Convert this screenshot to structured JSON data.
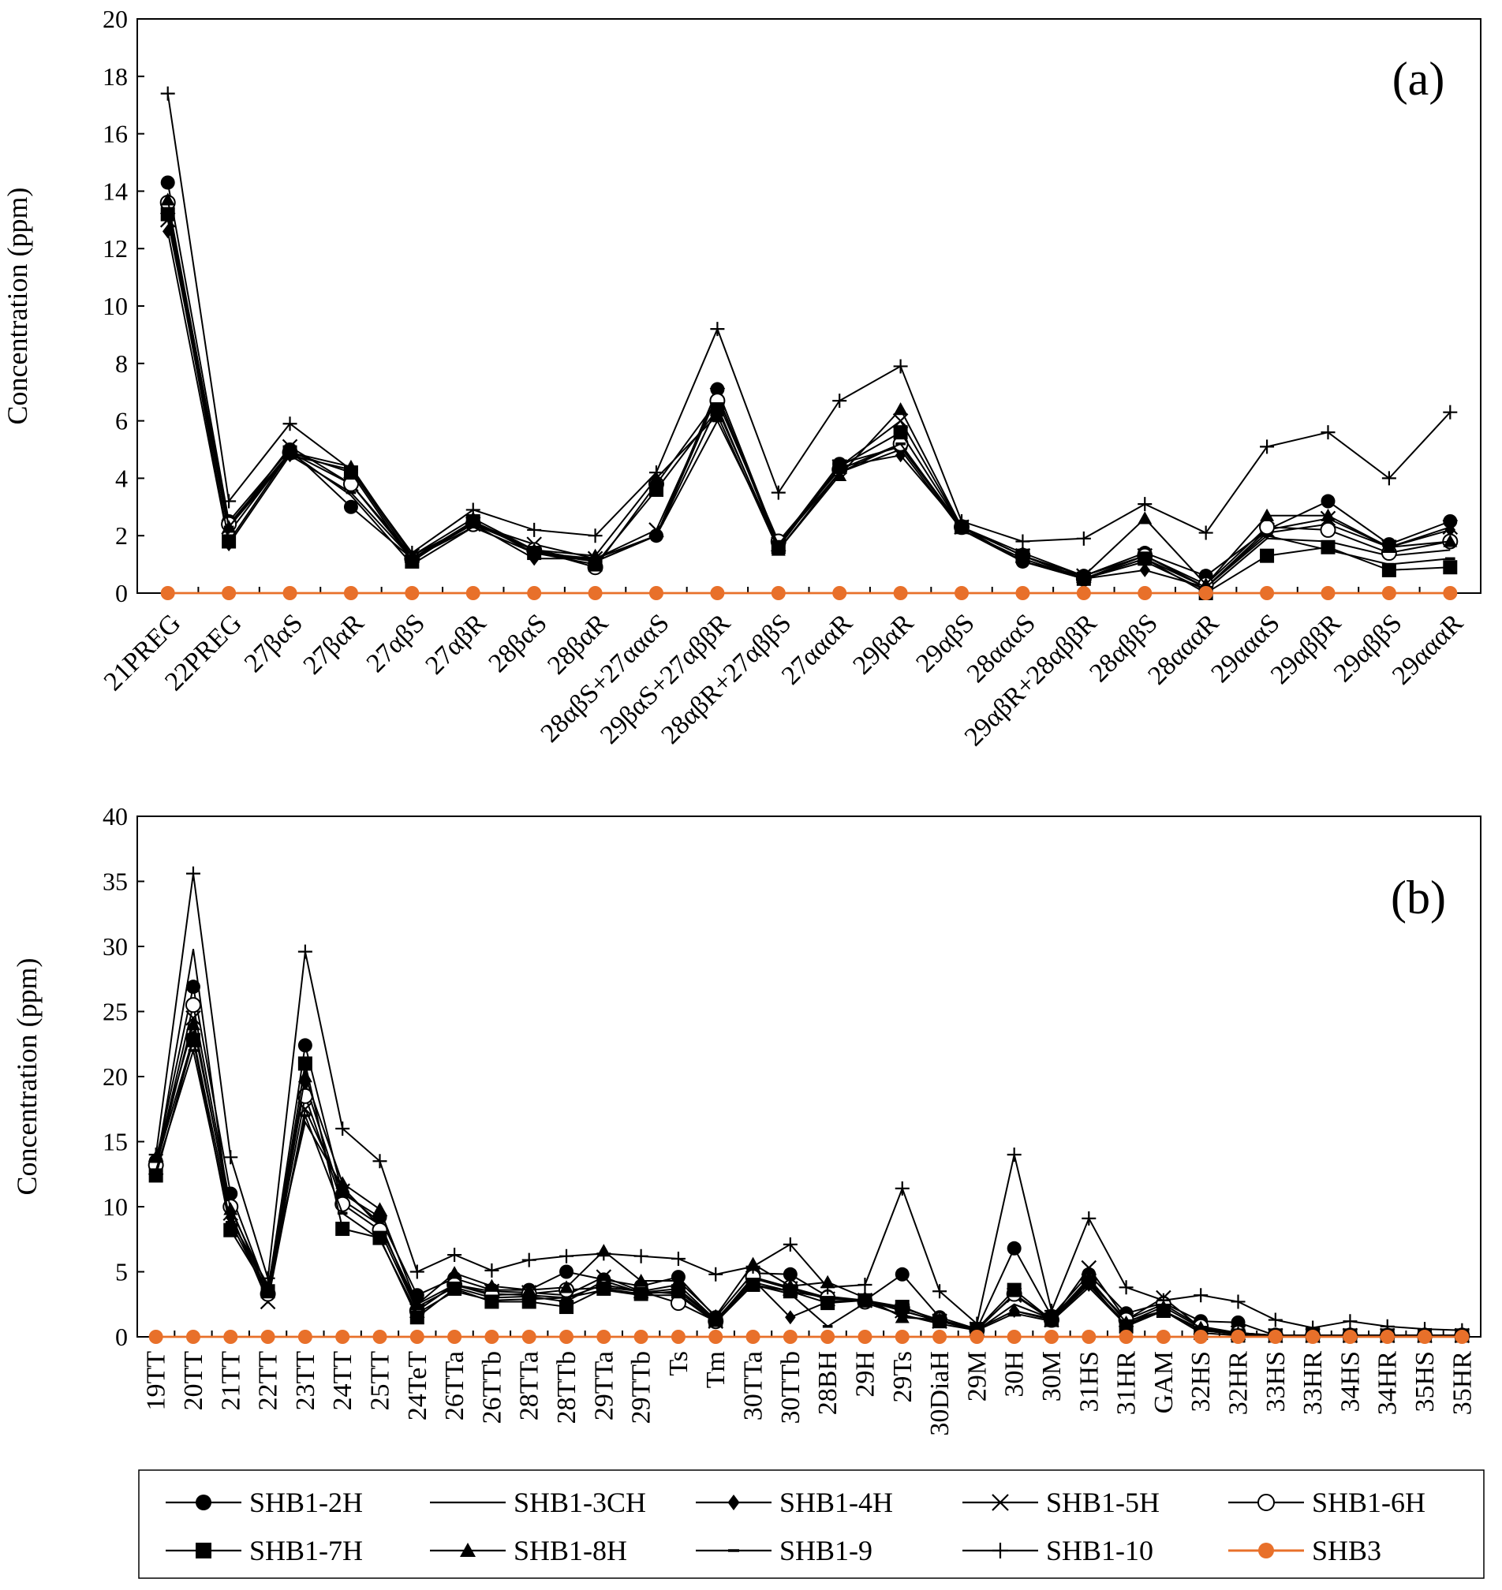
{
  "chart_data": [
    {
      "panel": "(a)",
      "type": "line",
      "ylabel": "Concentration (ppm)",
      "ylim": [
        0,
        20
      ],
      "yticks": [
        "0",
        "2",
        "4",
        "6",
        "8",
        "10",
        "12",
        "14",
        "16",
        "18",
        "20"
      ],
      "grid": false,
      "categories": [
        "21PREG",
        "22PREG",
        "27βαS",
        "27βαR",
        "27αβS",
        "27αβR",
        "28βαS",
        "28βαR",
        "28αβS+27αααS",
        "29βαS+27αββR",
        "28αβR+27αββS",
        "27αααR",
        "29βαR",
        "29αβS",
        "28αααS",
        "29αβR+28αββR",
        "28αββS",
        "28αααR",
        "29αααS",
        "29αββR",
        "29αββS",
        "29αααR"
      ],
      "series": [
        {
          "name": "SHB1-2H",
          "values": [
            14.3,
            2.5,
            5.0,
            3.0,
            1.2,
            2.5,
            1.5,
            1.1,
            2.0,
            7.1,
            1.7,
            4.5,
            5.1,
            2.3,
            1.1,
            0.6,
            1.4,
            0.6,
            2.2,
            3.2,
            1.7,
            2.5
          ]
        },
        {
          "name": "SHB1-3CH",
          "values": [
            13.4,
            2.1,
            4.9,
            3.4,
            1.0,
            2.3,
            1.4,
            1.1,
            2.0,
            6.5,
            1.5,
            4.2,
            5.0,
            2.2,
            1.1,
            0.5,
            1.1,
            0.1,
            1.9,
            1.8,
            1.3,
            1.5
          ]
        },
        {
          "name": "SHB1-4H",
          "values": [
            12.6,
            1.7,
            4.8,
            4.3,
            1.2,
            2.4,
            1.2,
            1.2,
            2.0,
            6.9,
            1.6,
            4.4,
            4.8,
            2.3,
            1.1,
            0.5,
            0.8,
            0.2,
            2.1,
            2.4,
            1.6,
            2.2
          ]
        },
        {
          "name": "SHB1-5H",
          "values": [
            13.0,
            2.3,
            5.1,
            3.8,
            1.3,
            2.4,
            1.7,
            1.2,
            2.2,
            6.9,
            1.7,
            4.4,
            6.0,
            2.3,
            1.3,
            0.6,
            1.3,
            0.2,
            2.2,
            2.6,
            1.6,
            2.3
          ]
        },
        {
          "name": "SHB1-6H",
          "values": [
            13.6,
            2.4,
            4.9,
            3.8,
            1.2,
            2.4,
            1.5,
            0.9,
            3.8,
            6.7,
            1.8,
            4.3,
            5.2,
            2.3,
            1.3,
            0.5,
            1.3,
            0.3,
            2.3,
            2.2,
            1.4,
            1.8
          ]
        },
        {
          "name": "SHB1-7H",
          "values": [
            13.2,
            1.8,
            4.9,
            4.2,
            1.1,
            2.5,
            1.4,
            1.0,
            3.6,
            6.4,
            1.6,
            4.4,
            5.6,
            2.3,
            1.3,
            0.5,
            1.2,
            0.0,
            1.3,
            1.6,
            0.8,
            0.9
          ]
        },
        {
          "name": "SHB1-8H",
          "values": [
            13.7,
            2.3,
            4.9,
            4.4,
            1.3,
            2.6,
            1.5,
            1.3,
            4.0,
            6.2,
            1.5,
            4.1,
            6.4,
            2.3,
            1.4,
            0.6,
            2.6,
            0.3,
            2.7,
            2.7,
            1.6,
            1.8
          ]
        },
        {
          "name": "SHB1-9",
          "values": [
            13.3,
            2.3,
            4.8,
            3.5,
            1.2,
            2.3,
            1.4,
            1.2,
            2.0,
            6.0,
            1.7,
            4.2,
            5.2,
            2.2,
            1.2,
            0.5,
            1.2,
            0.2,
            2.0,
            1.5,
            1.0,
            1.2
          ]
        },
        {
          "name": "SHB1-10",
          "values": [
            17.4,
            3.2,
            5.9,
            4.3,
            1.4,
            2.9,
            2.2,
            2.0,
            4.2,
            9.2,
            3.5,
            6.7,
            7.9,
            2.5,
            1.8,
            1.9,
            3.1,
            2.1,
            5.1,
            5.6,
            4.0,
            6.3
          ]
        },
        {
          "name": "SHB3",
          "values": [
            0,
            0,
            0,
            0,
            0,
            0,
            0,
            0,
            0,
            0,
            0,
            0,
            0,
            0,
            0,
            0,
            0,
            0,
            0,
            0,
            0,
            0
          ]
        }
      ]
    },
    {
      "panel": "(b)",
      "type": "line",
      "ylabel": "Concentration (ppm)",
      "ylim": [
        0,
        40
      ],
      "yticks": [
        "0",
        "5",
        "10",
        "15",
        "20",
        "25",
        "30",
        "35",
        "40"
      ],
      "grid": false,
      "categories": [
        "19TT",
        "20TT",
        "21TT",
        "22TT",
        "23TT",
        "24TT",
        "25TT",
        "24TeT",
        "26TTa",
        "26TTb",
        "28TTa",
        "28TTb",
        "29TTa",
        "29TTb",
        "Ts",
        "Tm",
        "30TTa",
        "30TTb",
        "28BH",
        "29H",
        "29Ts",
        "30DiaH",
        "29M",
        "30H",
        "30M",
        "31HS",
        "31HR",
        "GAM",
        "32HS",
        "32HR",
        "33HS",
        "33HR",
        "34HS",
        "34HR",
        "35HS",
        "35HR"
      ],
      "series": [
        {
          "name": "SHB1-2H",
          "values": [
            13.5,
            26.9,
            11.0,
            3.5,
            22.4,
            11.0,
            9.2,
            3.2,
            4.5,
            3.6,
            3.6,
            5.0,
            4.4,
            3.9,
            4.6,
            1.5,
            4.9,
            4.8,
            3.1,
            2.8,
            4.8,
            1.5,
            0.6,
            6.8,
            1.6,
            4.8,
            1.8,
            2.6,
            1.2,
            1.1,
            0.1,
            0.1,
            0.1,
            0.1,
            0.1,
            0.1
          ]
        },
        {
          "name": "SHB1-3CH",
          "values": [
            13.0,
            29.8,
            9.0,
            4.0,
            16.5,
            11.5,
            8.5,
            2.5,
            4.0,
            3.3,
            3.2,
            3.0,
            4.0,
            3.5,
            4.0,
            1.3,
            4.2,
            3.5,
            3.0,
            2.8,
            2.0,
            1.2,
            0.5,
            2.5,
            1.4,
            4.3,
            1.2,
            2.0,
            0.6,
            0.2,
            0.1,
            0.1,
            0.1,
            0.1,
            0.1,
            0.1
          ]
        },
        {
          "name": "SHB1-4H",
          "values": [
            13.2,
            23.0,
            9.2,
            3.4,
            19.5,
            10.5,
            8.6,
            2.3,
            3.8,
            3.0,
            3.1,
            2.7,
            4.3,
            3.4,
            3.7,
            1.3,
            4.4,
            1.5,
            2.7,
            2.8,
            1.6,
            1.2,
            0.6,
            2.0,
            1.3,
            4.0,
            1.0,
            2.0,
            0.5,
            0.2,
            0.1,
            0.1,
            0.1,
            0.1,
            0.1,
            0.1
          ]
        },
        {
          "name": "SHB1-5H",
          "values": [
            13.0,
            24.5,
            9.5,
            2.7,
            17.5,
            11.2,
            8.8,
            2.0,
            4.0,
            3.5,
            3.4,
            3.2,
            4.6,
            3.5,
            3.3,
            1.2,
            4.5,
            3.7,
            2.9,
            2.8,
            2.0,
            1.2,
            0.6,
            3.2,
            1.3,
            5.3,
            1.3,
            3.0,
            0.7,
            0.3,
            0.1,
            0.1,
            0.1,
            0.1,
            0.1,
            0.1
          ]
        },
        {
          "name": "SHB1-6H",
          "values": [
            13.2,
            25.5,
            10.0,
            3.3,
            18.5,
            10.2,
            8.2,
            2.0,
            4.0,
            3.2,
            3.3,
            3.6,
            3.8,
            3.5,
            2.6,
            1.2,
            4.6,
            3.8,
            3.0,
            2.7,
            2.2,
            1.3,
            0.5,
            3.3,
            1.3,
            4.3,
            1.3,
            2.5,
            0.8,
            0.3,
            0.1,
            0.1,
            0.1,
            0.1,
            0.1,
            0.1
          ]
        },
        {
          "name": "SHB1-7H",
          "values": [
            12.4,
            22.8,
            8.2,
            3.5,
            21.0,
            8.3,
            7.6,
            1.5,
            3.7,
            2.7,
            2.7,
            2.3,
            3.7,
            3.3,
            3.5,
            1.3,
            4.0,
            3.5,
            2.6,
            2.8,
            2.3,
            1.2,
            0.6,
            3.6,
            1.3,
            4.2,
            0.8,
            2.0,
            0.3,
            0.1,
            0.1,
            0.1,
            0.1,
            0.1,
            0.1,
            0.1
          ]
        },
        {
          "name": "SHB1-8H",
          "values": [
            13.8,
            24.0,
            9.8,
            3.8,
            20.0,
            11.8,
            9.8,
            2.5,
            4.9,
            3.9,
            3.6,
            3.8,
            6.6,
            4.3,
            4.3,
            1.6,
            5.6,
            3.9,
            4.2,
            3.0,
            1.5,
            1.3,
            0.6,
            2.0,
            1.4,
            4.5,
            1.1,
            2.3,
            0.7,
            0.3,
            0.1,
            0.1,
            0.1,
            0.1,
            0.1,
            0.1
          ]
        },
        {
          "name": "SHB1-9",
          "values": [
            12.8,
            22.0,
            8.8,
            3.2,
            17.0,
            9.5,
            7.5,
            1.8,
            3.5,
            2.8,
            2.9,
            3.0,
            3.6,
            3.2,
            3.2,
            1.1,
            4.0,
            3.3,
            0.8,
            2.6,
            1.7,
            1.0,
            0.5,
            1.8,
            1.2,
            3.8,
            0.9,
            2.0,
            0.5,
            0.2,
            0.1,
            0.1,
            0.1,
            0.1,
            0.1,
            0.1
          ]
        },
        {
          "name": "SHB1-10",
          "values": [
            14.0,
            35.6,
            13.8,
            4.5,
            29.6,
            16.0,
            13.5,
            5.0,
            6.3,
            5.1,
            5.9,
            6.2,
            6.4,
            6.2,
            6.0,
            4.8,
            5.4,
            7.1,
            3.8,
            4.0,
            11.4,
            3.5,
            1.0,
            14.0,
            2.0,
            9.1,
            3.8,
            2.8,
            3.2,
            2.7,
            1.3,
            0.7,
            1.2,
            0.8,
            0.6,
            0.5
          ]
        },
        {
          "name": "SHB3",
          "values": [
            0,
            0,
            0,
            0,
            0,
            0,
            0,
            0,
            0,
            0,
            0,
            0,
            0,
            0,
            0,
            0,
            0,
            0,
            0,
            0,
            0,
            0,
            0,
            0,
            0,
            0,
            0,
            0,
            0,
            0,
            0,
            0,
            0,
            0,
            0,
            0
          ]
        }
      ]
    }
  ],
  "legend": [
    {
      "name": "SHB1-2H",
      "marker": "filled-circle"
    },
    {
      "name": "SHB1-3CH",
      "marker": "none"
    },
    {
      "name": "SHB1-4H",
      "marker": "filled-diamond"
    },
    {
      "name": "SHB1-5H",
      "marker": "cross-x"
    },
    {
      "name": "SHB1-6H",
      "marker": "open-circle"
    },
    {
      "name": "SHB1-7H",
      "marker": "filled-square"
    },
    {
      "name": "SHB1-8H",
      "marker": "filled-triangle"
    },
    {
      "name": "SHB1-9",
      "marker": "dash"
    },
    {
      "name": "SHB1-10",
      "marker": "plus"
    },
    {
      "name": "SHB3",
      "marker": "orange-circle"
    }
  ],
  "colors": {
    "series": "#000000",
    "shb3": "#E8702A"
  }
}
